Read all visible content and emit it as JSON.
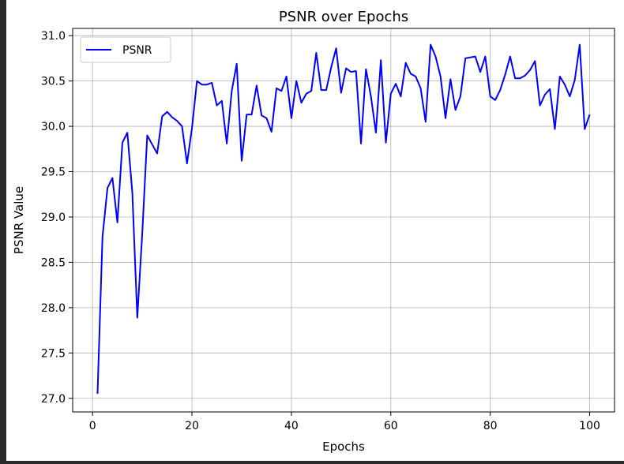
{
  "chart_data": {
    "type": "line",
    "title": "PSNR over Epochs",
    "xlabel": "Epochs",
    "ylabel": "PSNR Value",
    "xlim": [
      -4,
      105
    ],
    "ylim": [
      26.85,
      31.08
    ],
    "xticks": [
      0,
      20,
      40,
      60,
      80,
      100
    ],
    "yticks": [
      27.0,
      27.5,
      28.0,
      28.5,
      29.0,
      29.5,
      30.0,
      30.5,
      31.0
    ],
    "grid": true,
    "legend_position": "top-left",
    "series": [
      {
        "name": "PSNR",
        "color": "#0000ff",
        "x": [
          1,
          2,
          3,
          4,
          5,
          6,
          7,
          8,
          9,
          10,
          11,
          12,
          13,
          14,
          15,
          16,
          17,
          18,
          19,
          20,
          21,
          22,
          23,
          24,
          25,
          26,
          27,
          28,
          29,
          30,
          31,
          32,
          33,
          34,
          35,
          36,
          37,
          38,
          39,
          40,
          41,
          42,
          43,
          44,
          45,
          46,
          47,
          48,
          49,
          50,
          51,
          52,
          53,
          54,
          55,
          56,
          57,
          58,
          59,
          60,
          61,
          62,
          63,
          64,
          65,
          66,
          67,
          68,
          69,
          70,
          71,
          72,
          73,
          74,
          75,
          76,
          77,
          78,
          79,
          80,
          81,
          82,
          83,
          84,
          85,
          86,
          87,
          88,
          89,
          90,
          91,
          92,
          93,
          94,
          95,
          96,
          97,
          98,
          99,
          100
        ],
        "values": [
          27.05,
          28.78,
          29.32,
          29.43,
          28.94,
          29.82,
          29.93,
          29.27,
          27.89,
          28.82,
          29.9,
          29.8,
          29.7,
          30.11,
          30.16,
          30.1,
          30.06,
          30.0,
          29.59,
          29.98,
          30.5,
          30.46,
          30.46,
          30.48,
          30.23,
          30.28,
          29.81,
          30.39,
          30.69,
          29.62,
          30.13,
          30.13,
          30.45,
          30.12,
          30.09,
          29.94,
          30.42,
          30.39,
          30.55,
          30.09,
          30.5,
          30.26,
          30.36,
          30.39,
          30.81,
          30.4,
          30.4,
          30.65,
          30.86,
          30.37,
          30.64,
          30.6,
          30.61,
          29.81,
          30.63,
          30.33,
          29.93,
          30.73,
          29.82,
          30.36,
          30.47,
          30.33,
          30.7,
          30.58,
          30.55,
          30.42,
          30.05,
          30.9,
          30.77,
          30.55,
          30.09,
          30.52,
          30.18,
          30.33,
          30.75,
          30.76,
          30.77,
          30.6,
          30.77,
          30.33,
          30.29,
          30.4,
          30.57,
          30.77,
          30.53,
          30.53,
          30.56,
          30.62,
          30.72,
          30.23,
          30.35,
          30.41,
          29.97,
          30.55,
          30.46,
          30.33,
          30.51,
          30.9,
          29.97,
          30.13
        ]
      }
    ]
  }
}
